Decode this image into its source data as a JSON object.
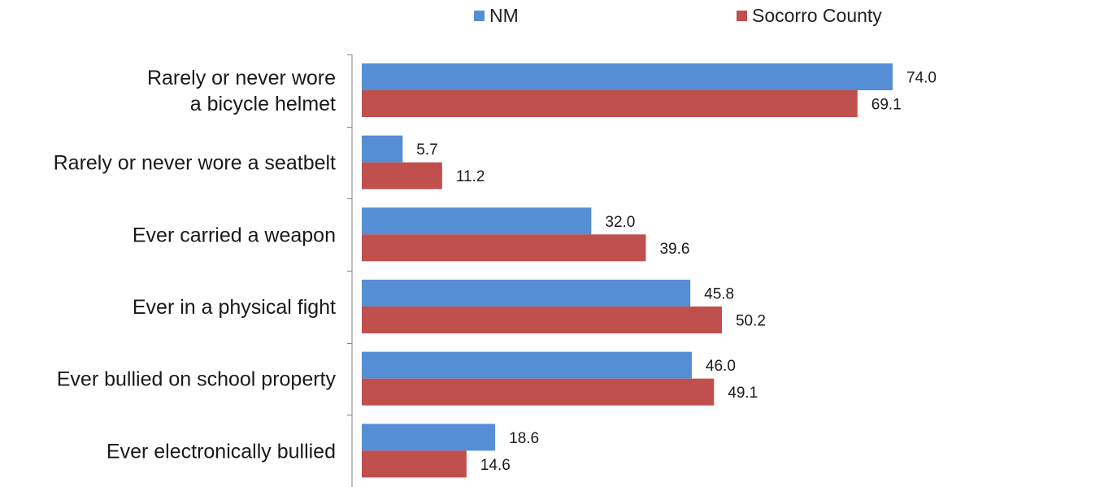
{
  "chart_data": {
    "type": "bar",
    "orientation": "horizontal",
    "categories": [
      [
        "Rarely or never wore",
        "a bicycle helmet"
      ],
      [
        "Rarely or never wore a seatbelt"
      ],
      [
        "Ever carried a weapon"
      ],
      [
        "Ever in a physical fight"
      ],
      [
        "Ever bullied on school property"
      ],
      [
        "Ever electronically bullied"
      ]
    ],
    "series": [
      {
        "name": "NM",
        "color": "#558ED5",
        "values": [
          74.0,
          5.7,
          32.0,
          45.8,
          46.0,
          18.6
        ]
      },
      {
        "name": "Socorro County",
        "color": "#C0504D",
        "values": [
          69.1,
          11.2,
          39.6,
          50.2,
          49.1,
          14.6
        ]
      }
    ],
    "value_labels": {
      "NM": [
        "74.0",
        "5.7",
        "32.0",
        "45.8",
        "46.0",
        "18.6"
      ],
      "Socorro County": [
        "69.1",
        "11.2",
        "39.6",
        "50.2",
        "49.1",
        "14.6"
      ]
    },
    "xlim": [
      0,
      80
    ],
    "grid": false,
    "legend_position": "top"
  }
}
